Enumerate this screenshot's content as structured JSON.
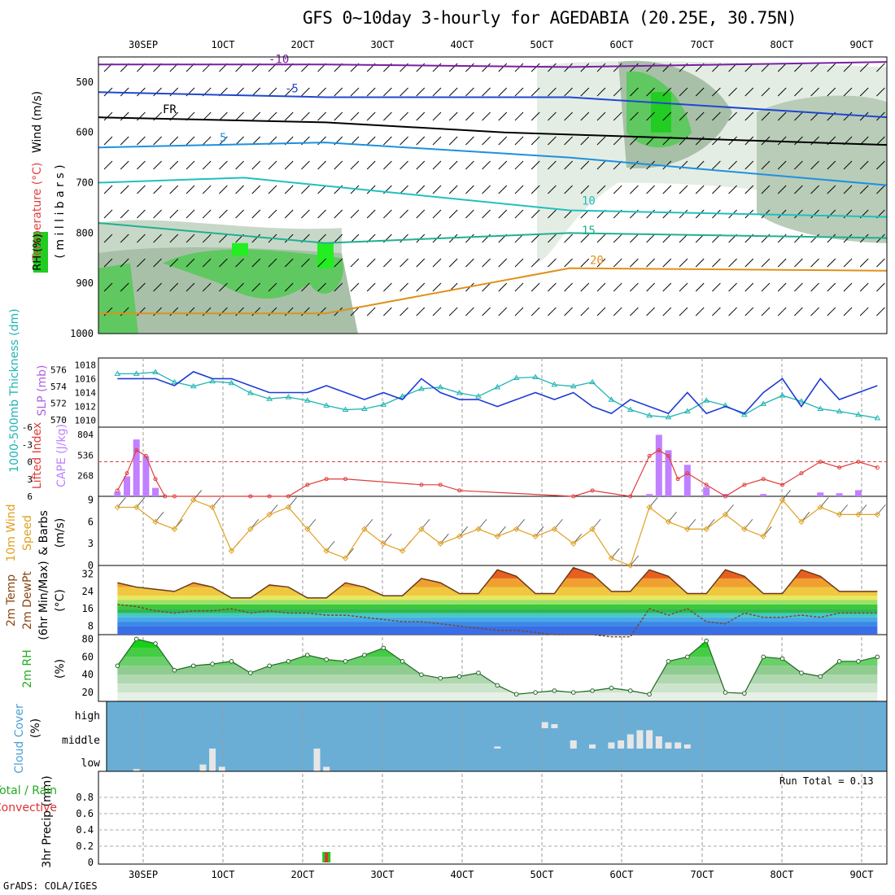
{
  "title": "GFS 0~10day 3-hourly for AGEDABIA (20.25E, 30.75N)",
  "footer": "GrADS: COLA/IGES",
  "date_labels": [
    "30SEP",
    "1OCT",
    "2OCT",
    "3OCT",
    "4OCT",
    "5OCT",
    "6OCT",
    "7OCT",
    "8OCT",
    "9OCT"
  ],
  "colors": {
    "slp": "#1e3cd2",
    "thickness": "#20b4b4",
    "lifted_index": "#e03c3c",
    "cape": "#c080ff",
    "wind_speed": "#e0a020",
    "rh_green": "#22cc22",
    "cloud_bg": "#6aaed6",
    "precip_total": "#22cc22",
    "precip_conv": "#e03030"
  },
  "panels": {
    "upper_air": {
      "labels": {
        "wind": "Wind (m/s)",
        "temperature": "Temperature (°C)",
        "rh": "RH (%)",
        "pressure": "( m i l l i b a r s )"
      },
      "yticks": [
        "500",
        "600",
        "700",
        "800",
        "900",
        "1000"
      ],
      "isotherm_labels": [
        "-10",
        "-5",
        "FR",
        "5",
        "10",
        "15",
        "20"
      ]
    },
    "slp_thick": {
      "label_slp": "SLP (mb)",
      "label_thick": "1000-500mb Thickness (dm)",
      "yticks_left": [
        "576",
        "574",
        "572",
        "570"
      ],
      "yticks_right": [
        "1018",
        "1016",
        "1014",
        "1012",
        "1010"
      ]
    },
    "cape_li": {
      "label_li": "Lifted Index",
      "label_cape": "CAPE (J/kg)",
      "yticks_li": [
        "-6",
        "-3",
        "0",
        "3",
        "6"
      ],
      "yticks_cape": [
        "804",
        "536",
        "268"
      ]
    },
    "wind10": {
      "label": "10m Wind Speed & Barbs (m/s)",
      "label_a": "10m Wind",
      "label_b": "Speed",
      "label_c": "& Barbs",
      "label_d": "(m/s)",
      "yticks": [
        "9",
        "6",
        "3",
        "0"
      ]
    },
    "temp2m": {
      "label_a": "2m Temp",
      "label_b": "2m DewPt",
      "label_c": "(6hr Min/Max)",
      "label_d": "(°C)",
      "yticks": [
        "32",
        "24",
        "16",
        "8"
      ]
    },
    "rh2m": {
      "label_a": "2m RH",
      "label_b": "(%)",
      "yticks": [
        "80",
        "60",
        "40",
        "20"
      ]
    },
    "cloud": {
      "label_a": "Cloud Cover",
      "label_b": "(%)",
      "yticks": [
        "high",
        "middle",
        "low"
      ]
    },
    "precip": {
      "label_a": "3hr Precip (mm)",
      "label_b": "Total / Rain",
      "label_c": "Convective",
      "run_total": "Run Total = 0.13",
      "yticks": [
        "0.8",
        "0.6",
        "0.4",
        "0.2",
        "0"
      ]
    }
  },
  "chart_data": [
    {
      "type": "line",
      "name": "slp_thickness",
      "x_unit": "forecast hour (3-hourly)",
      "x": [
        0,
        6,
        12,
        18,
        24,
        30,
        36,
        42,
        48,
        54,
        60,
        66,
        72,
        78,
        84,
        90,
        96,
        102,
        108,
        114,
        120,
        126,
        132,
        138,
        144,
        150,
        156,
        162,
        168,
        174,
        180,
        186,
        192,
        198,
        204,
        210,
        216,
        222,
        228,
        234,
        240
      ],
      "series": [
        {
          "name": "SLP (mb)",
          "axis": "right",
          "values": [
            1016,
            1016,
            1016,
            1015,
            1017,
            1016,
            1016,
            1015,
            1014,
            1014,
            1014,
            1015,
            1014,
            1013,
            1014,
            1013,
            1016,
            1014,
            1013,
            1013,
            1012,
            1013,
            1014,
            1013,
            1014,
            1012,
            1011,
            1013,
            1012,
            1011,
            1014,
            1011,
            1012,
            1011,
            1014,
            1016,
            1012,
            1016,
            1013,
            1014,
            1015
          ]
        },
        {
          "name": "1000-500mb Thickness (dm)",
          "axis": "left",
          "values": [
            575.5,
            575.5,
            575.7,
            574.5,
            574.0,
            574.6,
            574.4,
            573.2,
            572.5,
            572.7,
            572.3,
            571.7,
            571.2,
            571.3,
            571.8,
            572.8,
            573.7,
            573.9,
            573.2,
            572.8,
            573.9,
            575.0,
            575.1,
            574.2,
            574.0,
            574.5,
            572.4,
            571.2,
            570.5,
            570.3,
            571.0,
            572.3,
            571.7,
            570.6,
            571.9,
            572.9,
            572.2,
            571.3,
            571.0,
            570.6,
            570.2
          ]
        }
      ]
    },
    {
      "type": "bar",
      "name": "cape_lifted_index",
      "x_unit": "forecast hour",
      "x": [
        0,
        3,
        6,
        9,
        12,
        15,
        18,
        42,
        48,
        54,
        60,
        66,
        72,
        96,
        102,
        108,
        144,
        150,
        162,
        168,
        171,
        174,
        177,
        180,
        186,
        192,
        198,
        204,
        210,
        216,
        222,
        228,
        234,
        240
      ],
      "series": [
        {
          "name": "CAPE (J/kg)",
          "values": [
            60,
            260,
            740,
            520,
            110,
            0,
            0,
            10,
            10,
            10,
            0,
            0,
            0,
            0,
            0,
            0,
            0,
            0,
            0,
            30,
            800,
            600,
            0,
            410,
            120,
            30,
            0,
            30,
            0,
            0,
            50,
            40,
            80,
            0
          ]
        },
        {
          "name": "Lifted Index",
          "values": [
            5,
            2,
            -2,
            -1,
            3,
            6,
            6,
            6,
            6,
            6,
            4,
            3,
            3,
            4,
            4,
            5,
            6,
            5,
            6,
            -1,
            -2,
            -1,
            3,
            2,
            4,
            6,
            4,
            3,
            4,
            2,
            0,
            1,
            0,
            1
          ]
        }
      ]
    },
    {
      "type": "line",
      "name": "wind10m_speed",
      "x_unit": "forecast hour",
      "x": [
        0,
        6,
        12,
        18,
        24,
        30,
        36,
        42,
        48,
        54,
        60,
        66,
        72,
        78,
        84,
        90,
        96,
        102,
        108,
        114,
        120,
        126,
        132,
        138,
        144,
        150,
        156,
        162,
        168,
        174,
        180,
        186,
        192,
        198,
        204,
        210,
        216,
        222,
        228,
        234,
        240
      ],
      "series": [
        {
          "name": "10m Wind Speed (m/s)",
          "values": [
            8,
            8,
            6,
            5,
            9,
            8,
            2,
            5,
            7,
            8,
            5,
            2,
            1,
            5,
            3,
            2,
            5,
            3,
            4,
            5,
            4,
            5,
            4,
            5,
            3,
            5,
            1,
            0,
            8,
            6,
            5,
            5,
            7,
            5,
            4,
            9,
            6,
            8,
            7,
            7,
            7
          ]
        }
      ],
      "ylim": [
        0,
        9
      ]
    },
    {
      "type": "area",
      "name": "temp2m",
      "x_unit": "forecast hour",
      "x": [
        0,
        6,
        12,
        18,
        24,
        30,
        36,
        42,
        48,
        54,
        60,
        66,
        72,
        78,
        84,
        90,
        96,
        102,
        108,
        114,
        120,
        126,
        132,
        138,
        144,
        150,
        156,
        162,
        168,
        174,
        180,
        186,
        192,
        198,
        204,
        210,
        216,
        222,
        228,
        234,
        240
      ],
      "series": [
        {
          "name": "2m Temp (°C)",
          "values": [
            28,
            26,
            25,
            24,
            28,
            26,
            21,
            21,
            27,
            26,
            21,
            21,
            28,
            26,
            22,
            22,
            30,
            28,
            23,
            23,
            34,
            31,
            23,
            23,
            35,
            32,
            24,
            24,
            34,
            31,
            23,
            23,
            34,
            31,
            23,
            23,
            34,
            31,
            24,
            24,
            24
          ]
        },
        {
          "name": "2m DewPt (°C)",
          "values": [
            18,
            17,
            15,
            14,
            15,
            15,
            16,
            14,
            15,
            14,
            14,
            13,
            13,
            12,
            11,
            10,
            10,
            9,
            8,
            7,
            6,
            6,
            5,
            4,
            4,
            4,
            3,
            3,
            16,
            13,
            16,
            10,
            9,
            14,
            12,
            12,
            13,
            12,
            14,
            14,
            14
          ]
        }
      ],
      "ylim": [
        4,
        36
      ]
    },
    {
      "type": "area",
      "name": "rh2m",
      "x_unit": "forecast hour",
      "x": [
        0,
        6,
        12,
        18,
        24,
        30,
        36,
        42,
        48,
        54,
        60,
        66,
        72,
        78,
        84,
        90,
        96,
        102,
        108,
        114,
        120,
        126,
        132,
        138,
        144,
        150,
        156,
        162,
        168,
        174,
        180,
        186,
        192,
        198,
        204,
        210,
        216,
        222,
        228,
        234,
        240
      ],
      "series": [
        {
          "name": "2m RH (%)",
          "values": [
            50,
            80,
            75,
            45,
            50,
            52,
            55,
            42,
            50,
            55,
            62,
            57,
            55,
            62,
            70,
            55,
            40,
            36,
            38,
            42,
            28,
            18,
            20,
            22,
            20,
            22,
            25,
            22,
            18,
            55,
            60,
            78,
            20,
            19,
            60,
            58,
            42,
            38,
            55,
            55,
            60
          ]
        }
      ],
      "ylim": [
        10,
        85
      ]
    },
    {
      "type": "bar",
      "name": "cloud_cover",
      "categories": [
        "low",
        "middle",
        "high"
      ],
      "note_levels": "cloud layers on a blue background; white blocks = cloud fraction",
      "x_unit": "forecast hour",
      "series": [
        {
          "name": "low",
          "x": [
            6,
            27,
            30,
            33,
            63,
            66
          ],
          "values": [
            10,
            30,
            100,
            20,
            100,
            20
          ]
        },
        {
          "name": "middle",
          "x": [
            120,
            144,
            150,
            156,
            159,
            162,
            165,
            168,
            171,
            174,
            177,
            180
          ],
          "values": [
            10,
            40,
            20,
            30,
            40,
            70,
            90,
            90,
            60,
            30,
            30,
            20
          ]
        },
        {
          "name": "high",
          "x": [
            135,
            138
          ],
          "values": [
            30,
            20
          ]
        }
      ]
    },
    {
      "type": "bar",
      "name": "precip_3hr",
      "x_unit": "forecast hour",
      "x": [
        66
      ],
      "series": [
        {
          "name": "Total / Rain",
          "values": [
            0.13
          ]
        },
        {
          "name": "Convective",
          "values": [
            0.12
          ]
        }
      ],
      "ylim": [
        0,
        1
      ],
      "run_total": 0.13
    }
  ]
}
